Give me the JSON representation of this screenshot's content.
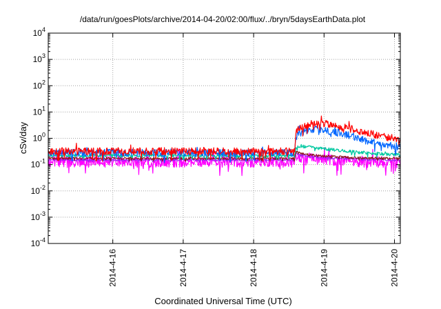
{
  "chart_data": {
    "type": "line",
    "title": "/data/run/goesPlots/archive/2014-04-20/02:00/flux/../bryn/5daysEarthData.plot",
    "xlabel": "Coordinated Universal Time (UTC)",
    "ylabel": "cSv/day",
    "y_scale": "log",
    "ylim": [
      0.0001,
      10000
    ],
    "y_ticks": [
      {
        "value": 0.0001,
        "base": "10",
        "exp": "-4"
      },
      {
        "value": 0.001,
        "base": "10",
        "exp": "-3"
      },
      {
        "value": 0.01,
        "base": "10",
        "exp": "-2"
      },
      {
        "value": 0.1,
        "base": "10",
        "exp": "-1"
      },
      {
        "value": 1,
        "base": "10",
        "exp": "0"
      },
      {
        "value": 10,
        "base": "10",
        "exp": "1"
      },
      {
        "value": 100,
        "base": "10",
        "exp": "2"
      },
      {
        "value": 1000,
        "base": "10",
        "exp": "3"
      },
      {
        "value": 10000,
        "base": "10",
        "exp": "4"
      }
    ],
    "xlim": [
      "2014-04-15T02:00",
      "2014-04-20T02:00"
    ],
    "x_ticks": [
      {
        "value": "2014-04-16T00:00",
        "label": "2014-4-16"
      },
      {
        "value": "2014-04-17T00:00",
        "label": "2014-4-17"
      },
      {
        "value": "2014-04-18T00:00",
        "label": "2014-4-18"
      },
      {
        "value": "2014-04-19T00:00",
        "label": "2014-4-19"
      },
      {
        "value": "2014-04-20T00:00",
        "label": "2014-4-20"
      }
    ],
    "grid": true,
    "series": [
      {
        "color": "#ff0000",
        "x": [
          "2014-04-15T02:00",
          "2014-04-18T14:00",
          "2014-04-18T14:20",
          "2014-04-18T15:00",
          "2014-04-18T18:00",
          "2014-04-18T21:00",
          "2014-04-19T00:00",
          "2014-04-19T03:00",
          "2014-04-19T06:00",
          "2014-04-19T09:00",
          "2014-04-19T12:00",
          "2014-04-19T15:00",
          "2014-04-19T18:00",
          "2014-04-19T21:00",
          "2014-04-20T00:00",
          "2014-04-20T02:00"
        ],
        "y": [
          0.32,
          0.32,
          1.6,
          2.4,
          3.2,
          3.8,
          3.6,
          3.2,
          2.8,
          2.3,
          1.9,
          1.6,
          1.3,
          1.1,
          1.0,
          0.95
        ],
        "noise": 0.14
      },
      {
        "color": "#0066ff",
        "x": [
          "2014-04-15T02:00",
          "2014-04-18T14:00",
          "2014-04-18T14:20",
          "2014-04-18T15:00",
          "2014-04-18T18:00",
          "2014-04-18T21:00",
          "2014-04-19T00:00",
          "2014-04-19T03:00",
          "2014-04-19T06:00",
          "2014-04-19T09:00",
          "2014-04-19T12:00",
          "2014-04-19T15:00",
          "2014-04-19T18:00",
          "2014-04-19T21:00",
          "2014-04-20T00:00",
          "2014-04-20T02:00"
        ],
        "y": [
          0.28,
          0.28,
          1.0,
          1.5,
          2.0,
          2.3,
          2.1,
          1.8,
          1.5,
          1.2,
          0.95,
          0.78,
          0.65,
          0.56,
          0.5,
          0.48
        ],
        "noise": 0.14
      },
      {
        "color": "#00c8a0",
        "x": [
          "2014-04-15T02:00",
          "2014-04-18T14:00",
          "2014-04-18T14:20",
          "2014-04-18T16:00",
          "2014-04-18T20:00",
          "2014-04-19T00:00",
          "2014-04-19T06:00",
          "2014-04-19T12:00",
          "2014-04-19T18:00",
          "2014-04-20T00:00",
          "2014-04-20T02:00"
        ],
        "y": [
          0.22,
          0.22,
          0.45,
          0.5,
          0.45,
          0.4,
          0.34,
          0.29,
          0.26,
          0.24,
          0.23
        ],
        "noise": 0.06
      },
      {
        "color": "#8b1a1a",
        "x": [
          "2014-04-15T02:00",
          "2014-04-18T14:00",
          "2014-04-18T14:20",
          "2014-04-18T18:00",
          "2014-04-19T00:00",
          "2014-04-19T12:00",
          "2014-04-20T02:00"
        ],
        "y": [
          0.17,
          0.17,
          0.3,
          0.24,
          0.21,
          0.18,
          0.17
        ],
        "noise": 0.04
      },
      {
        "color": "#a020f0",
        "x": [
          "2014-04-15T02:00",
          "2014-04-18T14:00",
          "2014-04-18T14:20",
          "2014-04-18T18:00",
          "2014-04-19T00:00",
          "2014-04-19T12:00",
          "2014-04-20T02:00"
        ],
        "y": [
          0.15,
          0.15,
          0.26,
          0.21,
          0.18,
          0.16,
          0.15
        ],
        "noise": 0.04
      },
      {
        "color": "#ff00ff",
        "x": [
          "2014-04-15T02:00",
          "2014-04-18T14:00",
          "2014-04-18T14:20",
          "2014-04-18T18:00",
          "2014-04-19T00:00",
          "2014-04-19T12:00",
          "2014-04-20T02:00"
        ],
        "y": [
          0.13,
          0.13,
          0.22,
          0.18,
          0.15,
          0.13,
          0.12
        ],
        "noise": 0.22
      }
    ]
  }
}
